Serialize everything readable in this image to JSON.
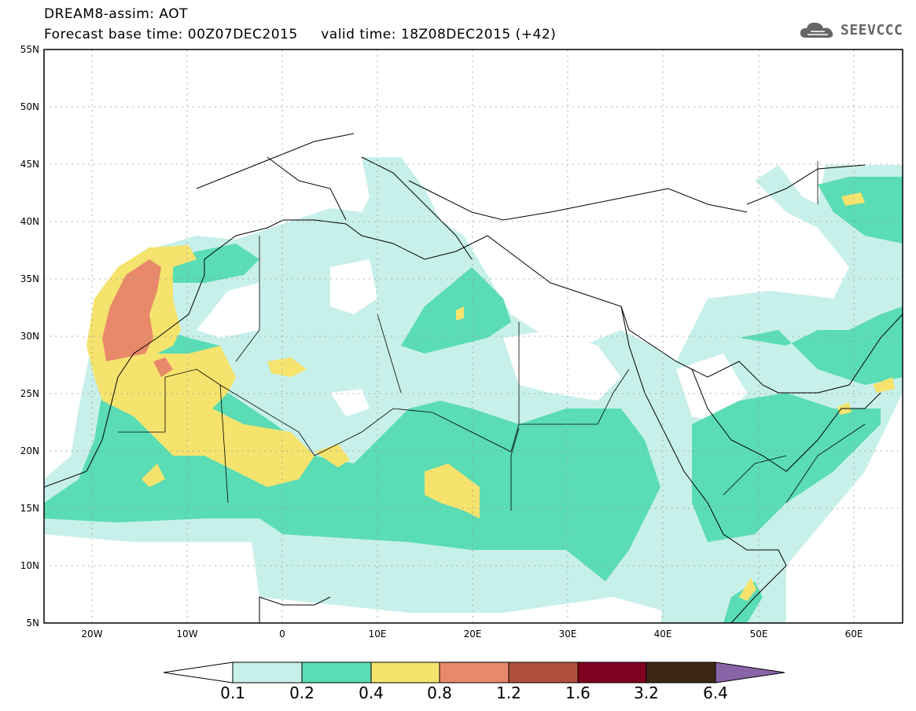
{
  "header": {
    "title_line1": "DREAM8-assim: AOT",
    "forecast_base": "Forecast base time: 00Z07DEC2015",
    "valid_time": "valid time: 18Z08DEC2015 (+42)"
  },
  "logo": {
    "text": "SEEVCCC"
  },
  "axes": {
    "lat_labels": [
      "55N",
      "50N",
      "45N",
      "40N",
      "35N",
      "30N",
      "25N",
      "20N",
      "15N",
      "10N",
      "5N"
    ],
    "lon_labels": [
      "20W",
      "10W",
      "0",
      "10E",
      "20E",
      "30E",
      "40E",
      "50E",
      "60E"
    ],
    "lon_range": [
      -25,
      65
    ],
    "lat_range": [
      5,
      55
    ]
  },
  "colorbar": {
    "labels": [
      "0.1",
      "0.2",
      "0.4",
      "0.8",
      "1.2",
      "1.6",
      "3.2",
      "6.4"
    ],
    "colors": [
      "#ffffff",
      "#c8f0ea",
      "#5adcb4",
      "#f5e36e",
      "#e8896a",
      "#b0503c",
      "#800020",
      "#3c2814",
      "#8a64a8"
    ]
  }
}
